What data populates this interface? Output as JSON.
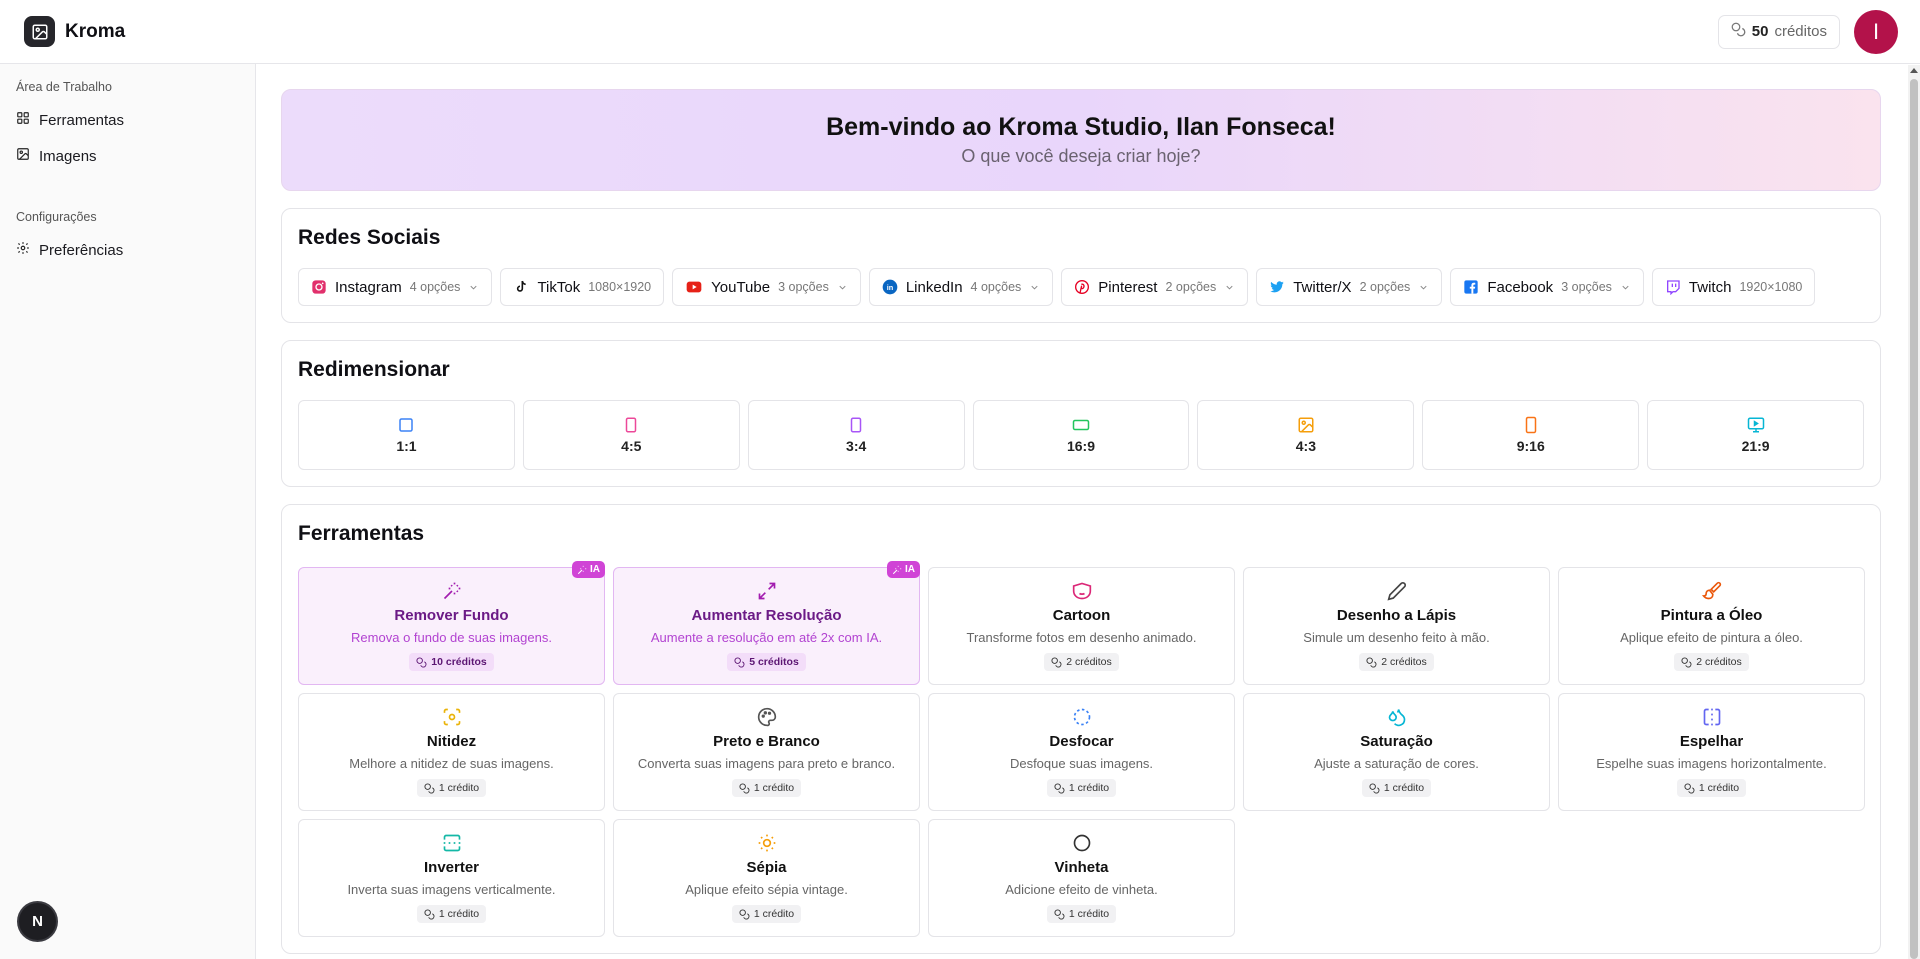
{
  "app": {
    "name": "Kroma"
  },
  "header": {
    "credits_value": "50",
    "credits_label": "créditos",
    "avatar_initial": "I"
  },
  "sidebar": {
    "groups": [
      {
        "title": "Área de Trabalho",
        "items": [
          {
            "label": "Ferramentas",
            "icon": "grid-icon"
          },
          {
            "label": "Imagens",
            "icon": "image-icon"
          }
        ]
      },
      {
        "title": "Configurações",
        "items": [
          {
            "label": "Preferências",
            "icon": "gear-icon"
          }
        ]
      }
    ],
    "badge": "N"
  },
  "welcome": {
    "title": "Bem-vindo ao Kroma Studio, Ilan Fonseca!",
    "subtitle": "O que você deseja criar hoje?"
  },
  "social": {
    "title": "Redes Sociais",
    "items": [
      {
        "name": "Instagram",
        "sub": "4 opções",
        "dropdown": true,
        "color": "#e1306c",
        "icon": "instagram-icon"
      },
      {
        "name": "TikTok",
        "sub": "1080×1920",
        "dropdown": false,
        "color": "#111111",
        "icon": "tiktok-icon"
      },
      {
        "name": "YouTube",
        "sub": "3 opções",
        "dropdown": true,
        "color": "#e62117",
        "icon": "youtube-icon"
      },
      {
        "name": "LinkedIn",
        "sub": "4 opções",
        "dropdown": true,
        "color": "#0a66c2",
        "icon": "linkedin-icon"
      },
      {
        "name": "Pinterest",
        "sub": "2 opções",
        "dropdown": true,
        "color": "#e60023",
        "icon": "pinterest-icon"
      },
      {
        "name": "Twitter/X",
        "sub": "2 opções",
        "dropdown": true,
        "color": "#1da1f2",
        "icon": "twitter-icon"
      },
      {
        "name": "Facebook",
        "sub": "3 opções",
        "dropdown": true,
        "color": "#1877f2",
        "icon": "facebook-icon"
      },
      {
        "name": "Twitch",
        "sub": "1920×1080",
        "dropdown": false,
        "color": "#9146ff",
        "icon": "twitch-icon"
      }
    ]
  },
  "resize": {
    "title": "Redimensionar",
    "items": [
      {
        "label": "1:1",
        "color": "#3b82f6",
        "icon": "square-icon"
      },
      {
        "label": "4:5",
        "color": "#ec4899",
        "icon": "portrait-icon"
      },
      {
        "label": "3:4",
        "color": "#a855f7",
        "icon": "portrait-icon"
      },
      {
        "label": "16:9",
        "color": "#22c55e",
        "icon": "landscape-icon"
      },
      {
        "label": "4:3",
        "color": "#f59e0b",
        "icon": "image-icon"
      },
      {
        "label": "9:16",
        "color": "#f97316",
        "icon": "phone-icon"
      },
      {
        "label": "21:9",
        "color": "#06b6d4",
        "icon": "monitor-icon"
      }
    ]
  },
  "tools": {
    "title": "Ferramentas",
    "badge_label": "IA",
    "items": [
      {
        "name": "Remover Fundo",
        "desc": "Remova o fundo de suas imagens.",
        "cost": "10 créditos",
        "ai": true,
        "color": "#a21caf",
        "icon": "wand-icon"
      },
      {
        "name": "Aumentar Resolução",
        "desc": "Aumente a resolução em até 2x com IA.",
        "cost": "5 créditos",
        "ai": true,
        "color": "#a21caf",
        "icon": "expand-icon"
      },
      {
        "name": "Cartoon",
        "desc": "Transforme fotos em desenho animado.",
        "cost": "2 créditos",
        "ai": false,
        "color": "#db2777",
        "icon": "mask-icon"
      },
      {
        "name": "Desenho a Lápis",
        "desc": "Simule um desenho feito à mão.",
        "cost": "2 créditos",
        "ai": false,
        "color": "#444444",
        "icon": "pencil-icon"
      },
      {
        "name": "Pintura a Óleo",
        "desc": "Aplique efeito de pintura a óleo.",
        "cost": "2 créditos",
        "ai": false,
        "color": "#ea580c",
        "icon": "brush-icon"
      },
      {
        "name": "Nitidez",
        "desc": "Melhore a nitidez de suas imagens.",
        "cost": "1 crédito",
        "ai": false,
        "color": "#eab308",
        "icon": "focus-icon"
      },
      {
        "name": "Preto e Branco",
        "desc": "Converta suas imagens para preto e branco.",
        "cost": "1 crédito",
        "ai": false,
        "color": "#555555",
        "icon": "palette-icon"
      },
      {
        "name": "Desfocar",
        "desc": "Desfoque suas imagens.",
        "cost": "1 crédito",
        "ai": false,
        "color": "#3b82f6",
        "icon": "blur-icon"
      },
      {
        "name": "Saturação",
        "desc": "Ajuste a saturação de cores.",
        "cost": "1 crédito",
        "ai": false,
        "color": "#06b6d4",
        "icon": "droplets-icon"
      },
      {
        "name": "Espelhar",
        "desc": "Espelhe suas imagens horizontalmente.",
        "cost": "1 crédito",
        "ai": false,
        "color": "#6366f1",
        "icon": "flip-horizontal-icon"
      },
      {
        "name": "Inverter",
        "desc": "Inverta suas imagens verticalmente.",
        "cost": "1 crédito",
        "ai": false,
        "color": "#14b8a6",
        "icon": "flip-vertical-icon"
      },
      {
        "name": "Sépia",
        "desc": "Aplique efeito sépia vintage.",
        "cost": "1 crédito",
        "ai": false,
        "color": "#f59e0b",
        "icon": "sun-icon"
      },
      {
        "name": "Vinheta",
        "desc": "Adicione efeito de vinheta.",
        "cost": "1 crédito",
        "ai": false,
        "color": "#333333",
        "icon": "circle-icon"
      }
    ]
  }
}
